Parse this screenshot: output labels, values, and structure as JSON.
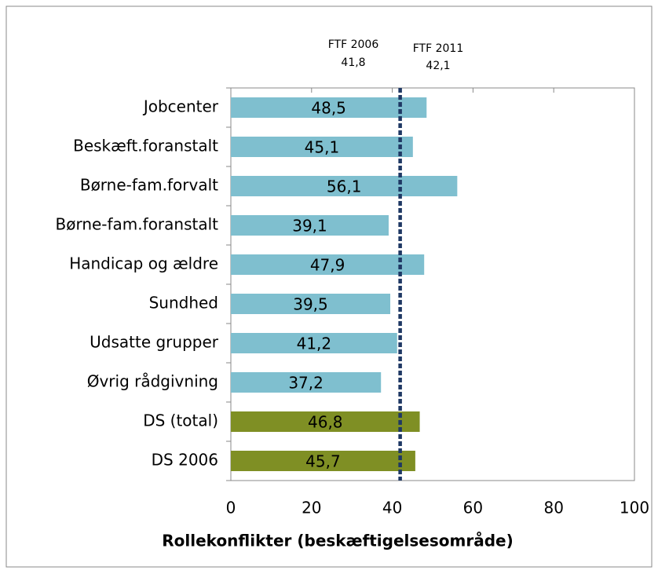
{
  "chart_data": {
    "type": "bar",
    "orientation": "horizontal",
    "xlabel": "Rollekonflikter (beskæftigelsesområde)",
    "categories": [
      "Jobcenter",
      "Beskæft.foranstalt",
      "Børne-fam.forvalt",
      "Børne-fam.foranstalt",
      "Handicap og ældre",
      "Sundhed",
      "Udsatte grupper",
      "Øvrig rådgivning",
      "DS (total)",
      "DS 2006"
    ],
    "values": [
      48.5,
      45.1,
      56.1,
      39.1,
      47.9,
      39.5,
      41.2,
      37.2,
      46.8,
      45.7
    ],
    "value_labels": [
      "48,5",
      "45,1",
      "56,1",
      "39,1",
      "47,9",
      "39,5",
      "41,2",
      "37,2",
      "46,8",
      "45,7"
    ],
    "colors": [
      "#7fbfcf",
      "#7fbfcf",
      "#7fbfcf",
      "#7fbfcf",
      "#7fbfcf",
      "#7fbfcf",
      "#7fbfcf",
      "#7fbfcf",
      "#7f8f24",
      "#7f8f24"
    ],
    "reference_lines": [
      {
        "label": "FTF 2006",
        "value": 41.8,
        "value_label": "41,8"
      },
      {
        "label": "FTF 2011",
        "value": 42.1,
        "value_label": "42,1"
      }
    ],
    "reference_line_color": "#1f3864",
    "xlim": [
      0,
      100
    ],
    "xticks": [
      0,
      20,
      40,
      60,
      80,
      100
    ]
  }
}
